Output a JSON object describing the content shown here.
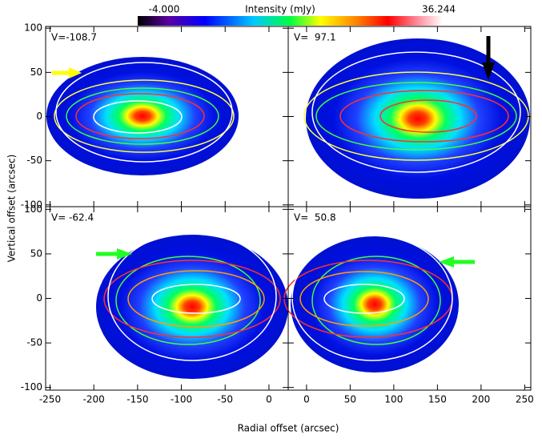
{
  "figure": {
    "colorbar": {
      "title": "Intensity (mJy)",
      "min": {
        "value": -4,
        "label": "-4.000"
      },
      "max": {
        "value": 36.244,
        "label": "36.244"
      }
    },
    "xlabel": "Radial offset (arcsec)",
    "ylabel": "Vertical offset (arcsec)"
  },
  "chart_data": [
    {
      "type": "image",
      "annotation": "V=-108.7",
      "xlim": [
        -255,
        22
      ],
      "ylim": [
        -102,
        102
      ],
      "xticks": [
        -250,
        -200,
        -150,
        -100,
        -50,
        0
      ],
      "yticks": [
        -100,
        -50,
        0,
        50,
        100
      ]
    },
    {
      "type": "image",
      "annotation": "V=  97.1",
      "xlim": [
        -21,
        257
      ],
      "ylim": [
        -102,
        102
      ],
      "xticks": [
        0,
        50,
        100,
        150,
        200,
        250
      ],
      "yticks": [
        -100,
        -50,
        0,
        50,
        100
      ]
    },
    {
      "type": "image",
      "annotation": "V= -62.4",
      "xlim": [
        -255,
        22
      ],
      "ylim": [
        -103,
        103
      ],
      "xticks": [
        -250,
        -200,
        -150,
        -100,
        -50,
        0
      ],
      "yticks": [
        -100,
        -50,
        0,
        50,
        100
      ]
    },
    {
      "type": "image",
      "annotation": "V=  50.8",
      "xlim": [
        -21,
        257
      ],
      "ylim": [
        -103,
        103
      ],
      "xticks": [
        0,
        50,
        100,
        150,
        200,
        250
      ],
      "yticks": [
        -100,
        -50,
        0,
        50,
        100
      ]
    }
  ]
}
